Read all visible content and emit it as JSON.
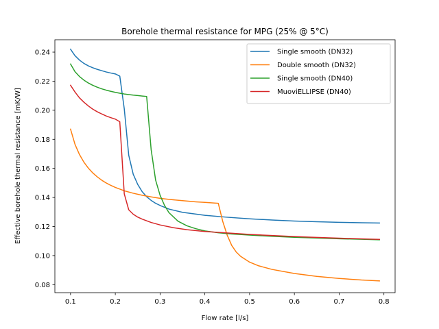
{
  "chart_data": {
    "type": "line",
    "title": "Borehole thermal resistance for MPG (25% @ 5°C)",
    "xlabel": "Flow rate [l/s]",
    "ylabel": "Effective borehole thermal resistance [mK/W]",
    "xlim": [
      0.065,
      0.825
    ],
    "ylim": [
      0.0745,
      0.2485
    ],
    "xticks": [
      0.1,
      0.2,
      0.3,
      0.4,
      0.5,
      0.6,
      0.7,
      0.8
    ],
    "xtick_labels": [
      "0.1",
      "0.2",
      "0.3",
      "0.4",
      "0.5",
      "0.6",
      "0.7",
      "0.8"
    ],
    "yticks": [
      0.08,
      0.1,
      0.12,
      0.14,
      0.16,
      0.18,
      0.2,
      0.22,
      0.24
    ],
    "ytick_labels": [
      "0.08",
      "0.10",
      "0.12",
      "0.14",
      "0.16",
      "0.18",
      "0.20",
      "0.22",
      "0.24"
    ],
    "grid": false,
    "legend_position": "top-right",
    "series": [
      {
        "name": "Single smooth (DN32)",
        "color": "#1f77b4",
        "x": [
          0.1,
          0.11,
          0.12,
          0.13,
          0.14,
          0.15,
          0.16,
          0.17,
          0.18,
          0.19,
          0.2,
          0.21,
          0.22,
          0.23,
          0.24,
          0.25,
          0.26,
          0.27,
          0.28,
          0.29,
          0.3,
          0.32,
          0.35,
          0.4,
          0.45,
          0.5,
          0.55,
          0.6,
          0.65,
          0.7,
          0.75,
          0.79
        ],
        "y": [
          0.242,
          0.2375,
          0.2345,
          0.2322,
          0.2305,
          0.2292,
          0.2281,
          0.2272,
          0.2263,
          0.2256,
          0.225,
          0.2235,
          0.201,
          0.169,
          0.156,
          0.149,
          0.144,
          0.1405,
          0.138,
          0.136,
          0.1345,
          0.132,
          0.1298,
          0.1277,
          0.1264,
          0.1253,
          0.1245,
          0.1238,
          0.1233,
          0.1229,
          0.1226,
          0.1224
        ]
      },
      {
        "name": "Double smooth (DN32)",
        "color": "#ff7f0e",
        "x": [
          0.1,
          0.11,
          0.12,
          0.13,
          0.14,
          0.15,
          0.16,
          0.17,
          0.18,
          0.19,
          0.2,
          0.22,
          0.24,
          0.26,
          0.28,
          0.3,
          0.32,
          0.35,
          0.38,
          0.4,
          0.43,
          0.44,
          0.45,
          0.46,
          0.47,
          0.48,
          0.5,
          0.52,
          0.55,
          0.6,
          0.65,
          0.7,
          0.75,
          0.79
        ],
        "y": [
          0.187,
          0.1765,
          0.1695,
          0.1642,
          0.1601,
          0.1568,
          0.1541,
          0.1518,
          0.1499,
          0.1483,
          0.1469,
          0.1446,
          0.1429,
          0.1415,
          0.1404,
          0.1394,
          0.1387,
          0.1378,
          0.137,
          0.1366,
          0.136,
          0.1235,
          0.114,
          0.107,
          0.1025,
          0.0995,
          0.0955,
          0.093,
          0.0905,
          0.0877,
          0.0857,
          0.0843,
          0.0832,
          0.0826
        ]
      },
      {
        "name": "Single smooth (DN40)",
        "color": "#2ca02c",
        "x": [
          0.1,
          0.11,
          0.12,
          0.13,
          0.14,
          0.15,
          0.16,
          0.17,
          0.18,
          0.19,
          0.2,
          0.21,
          0.22,
          0.23,
          0.24,
          0.25,
          0.26,
          0.27,
          0.28,
          0.29,
          0.3,
          0.31,
          0.32,
          0.34,
          0.36,
          0.38,
          0.4,
          0.43,
          0.46,
          0.5,
          0.55,
          0.6,
          0.65,
          0.7,
          0.75,
          0.79
        ],
        "y": [
          0.2318,
          0.2265,
          0.2232,
          0.2207,
          0.2187,
          0.2171,
          0.2158,
          0.2147,
          0.2138,
          0.213,
          0.2123,
          0.2117,
          0.2112,
          0.2108,
          0.2104,
          0.2101,
          0.2098,
          0.2095,
          0.173,
          0.152,
          0.1415,
          0.1345,
          0.1295,
          0.1237,
          0.1205,
          0.1185,
          0.117,
          0.1157,
          0.1149,
          0.1141,
          0.1133,
          0.1126,
          0.1121,
          0.1116,
          0.1112,
          0.1109
        ]
      },
      {
        "name": "MuoviELLIPSE (DN40)",
        "color": "#d62728",
        "x": [
          0.1,
          0.11,
          0.12,
          0.13,
          0.14,
          0.15,
          0.16,
          0.17,
          0.18,
          0.19,
          0.2,
          0.21,
          0.22,
          0.23,
          0.24,
          0.25,
          0.26,
          0.28,
          0.3,
          0.33,
          0.36,
          0.4,
          0.45,
          0.5,
          0.55,
          0.6,
          0.65,
          0.7,
          0.75,
          0.79
        ],
        "y": [
          0.2172,
          0.2125,
          0.2085,
          0.2055,
          0.2029,
          0.2007,
          0.1989,
          0.1974,
          0.196,
          0.1949,
          0.1939,
          0.1921,
          0.1425,
          0.1315,
          0.1285,
          0.1265,
          0.1251,
          0.1228,
          0.1211,
          0.1192,
          0.1178,
          0.1166,
          0.1156,
          0.1146,
          0.1138,
          0.1131,
          0.1125,
          0.112,
          0.1115,
          0.1112
        ]
      }
    ]
  }
}
